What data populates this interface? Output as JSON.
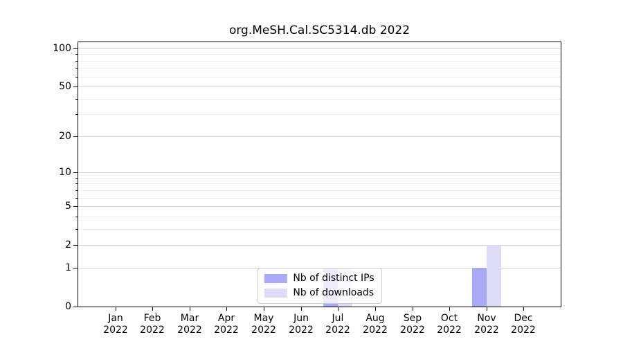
{
  "chart_data": {
    "type": "bar",
    "title": "org.MeSH.Cal.SC5314.db 2022",
    "categories": [
      "Jan",
      "Feb",
      "Mar",
      "Apr",
      "May",
      "Jun",
      "Jul",
      "Aug",
      "Sep",
      "Oct",
      "Nov",
      "Dec"
    ],
    "year_label": "2022",
    "series": [
      {
        "name": "Nb of distinct IPs",
        "color": "#a9a9f7",
        "values": [
          0,
          0,
          0,
          0,
          0,
          0,
          1,
          0,
          0,
          0,
          1,
          0
        ]
      },
      {
        "name": "Nb of downloads",
        "color": "#dcdcf8",
        "values": [
          0,
          0,
          0,
          0,
          0,
          0,
          1,
          0,
          0,
          0,
          2,
          0
        ]
      }
    ],
    "yscale": "log1p",
    "ylim": [
      0,
      112
    ],
    "ytick_values": [
      100,
      50,
      20,
      10,
      5,
      2,
      1,
      0
    ],
    "ytick_labels": [
      "100",
      "50",
      "20",
      "10",
      "5",
      "2",
      "1",
      "0"
    ],
    "yminor_values": [
      3,
      4,
      6,
      7,
      8,
      9,
      30,
      40,
      60,
      70,
      80,
      90
    ],
    "grid": true,
    "legend_position": "lower center",
    "colors": {
      "major_grid": "#d4d4d4",
      "minor_grid": "#ececec",
      "axis": "#000000",
      "background": "#ffffff"
    }
  }
}
